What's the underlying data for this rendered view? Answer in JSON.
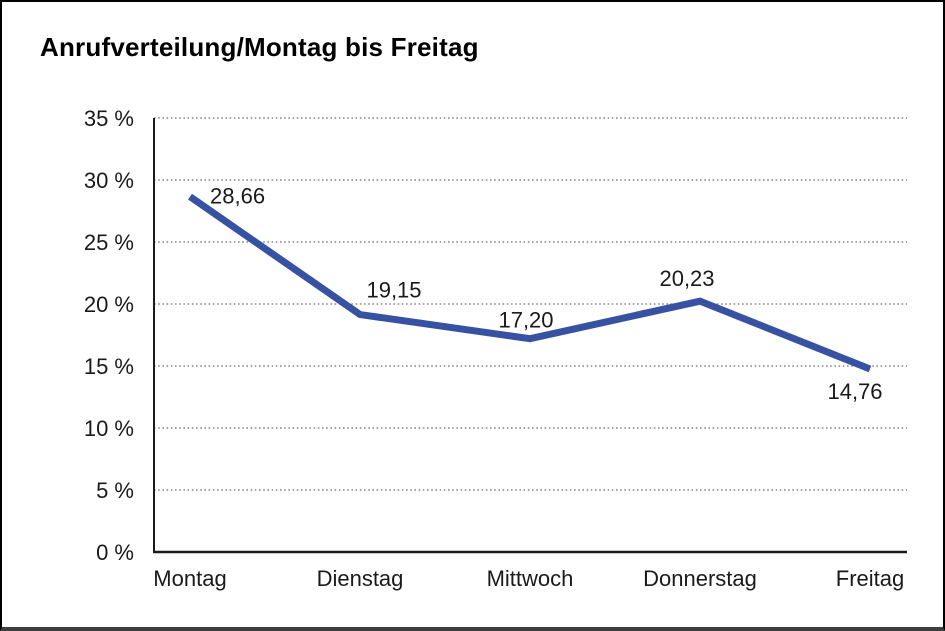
{
  "window": {
    "background": "#ffffff",
    "border_color": "#000000"
  },
  "title": "Anrufverteilung/Montag bis Freitag",
  "colors": {
    "line": "#3752a3",
    "grid": "#6e6e6e",
    "axis": "#1a1a1a",
    "text": "#1a1a1a"
  },
  "chart_data": {
    "type": "line",
    "title": "Anrufverteilung/Montag bis Freitag",
    "categories": [
      "Montag",
      "Dienstag",
      "Mittwoch",
      "Donnerstag",
      "Freitag"
    ],
    "values": [
      28.66,
      19.15,
      17.2,
      20.23,
      14.76
    ],
    "value_labels": [
      "28,66",
      "19,15",
      "17,20",
      "20,23",
      "14,76"
    ],
    "series_name": "Anrufverteilung",
    "xlabel": "",
    "ylabel": "",
    "ylim": [
      0,
      35
    ],
    "y_tick_step": 5,
    "y_tick_labels": [
      "0 %",
      "5 %",
      "10 %",
      "15 %",
      "20 %",
      "25 %",
      "30 %",
      "35 %"
    ],
    "grid": "horizontal-dotted",
    "legend": "none"
  }
}
